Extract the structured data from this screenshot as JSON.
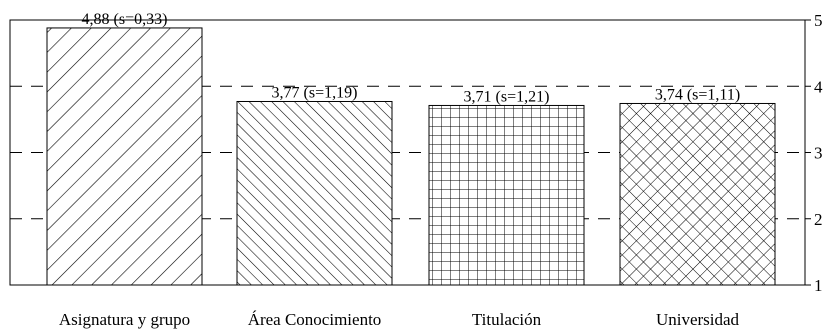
{
  "chart_data": {
    "type": "bar",
    "categories": [
      "Asignatura y grupo",
      "Área Conocimiento",
      "Titulación",
      "Universidad"
    ],
    "values": [
      4.88,
      3.77,
      3.71,
      3.74
    ],
    "data_labels": [
      "4,88 (s=0,33)",
      "3,77 (s=1,19)",
      "3,71 (s=1,21)",
      "3,74 (s=1,11)"
    ],
    "patterns": [
      "diagonal-wide",
      "diagonal-fine",
      "grid",
      "crosshatch"
    ],
    "ylim": [
      1,
      5
    ],
    "yticks": [
      "1",
      "2",
      "3",
      "4",
      "5"
    ],
    "y_axis_position": "right",
    "grid": "dashed-horizontal",
    "title": "",
    "xlabel": "",
    "ylabel": "",
    "colors": {
      "bar_fill": "#ffffff",
      "stroke": "#000000"
    }
  }
}
